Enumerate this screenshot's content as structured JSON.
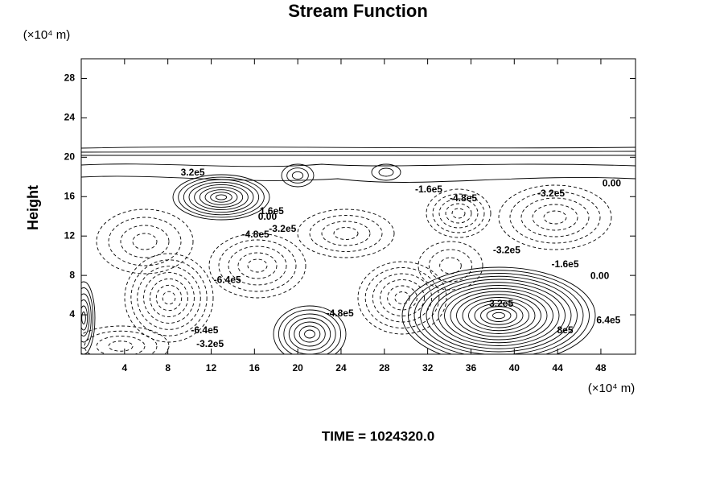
{
  "chart_data": {
    "type": "contour",
    "title": "Stream Function",
    "y_unit_label": "(×10⁴ m)",
    "x_unit_label": "(×10⁴ m)",
    "ylabel": "Height",
    "footer": "TIME = 1024320.0",
    "xlim": [
      0,
      51.2
    ],
    "ylim": [
      0,
      30
    ],
    "xticks": [
      4,
      8,
      12,
      16,
      20,
      24,
      28,
      32,
      36,
      40,
      44,
      48
    ],
    "yticks": [
      4,
      8,
      12,
      16,
      20,
      24,
      28
    ],
    "annotations": [
      {
        "text": "3.2e5",
        "x": 10.3,
        "y": 18.4
      },
      {
        "text": "-1.6e5",
        "x": 32.1,
        "y": 16.7
      },
      {
        "text": "-4.8e5",
        "x": 35.3,
        "y": 15.8
      },
      {
        "text": "-3.2e5",
        "x": 43.4,
        "y": 16.3
      },
      {
        "text": "0.00",
        "x": 49,
        "y": 17.3
      },
      {
        "text": "1.6e5",
        "x": 17.6,
        "y": 14.5
      },
      {
        "text": "0.00",
        "x": 17.2,
        "y": 13.9
      },
      {
        "text": "-4.8e5",
        "x": 16.1,
        "y": 12.1
      },
      {
        "text": "-3.2e5",
        "x": 18.6,
        "y": 12.7
      },
      {
        "text": "-3.2e5",
        "x": 39.3,
        "y": 10.5
      },
      {
        "text": "-1.6e5",
        "x": 44.7,
        "y": 9.1
      },
      {
        "text": "0.00",
        "x": 47.9,
        "y": 7.9
      },
      {
        "text": "-6.4e5",
        "x": 13.5,
        "y": 7.5
      },
      {
        "text": "-4.8e5",
        "x": 23.9,
        "y": 4.1
      },
      {
        "text": "3.2e5",
        "x": 38.8,
        "y": 5.1
      },
      {
        "text": "6.4e5",
        "x": 48.7,
        "y": 3.4
      },
      {
        "text": "8e5",
        "x": 44.7,
        "y": 2.4
      },
      {
        "text": "-6.4e5",
        "x": 11.4,
        "y": 2.4
      },
      {
        "text": "-3.2e5",
        "x": 11.9,
        "y": 1.0
      }
    ]
  }
}
